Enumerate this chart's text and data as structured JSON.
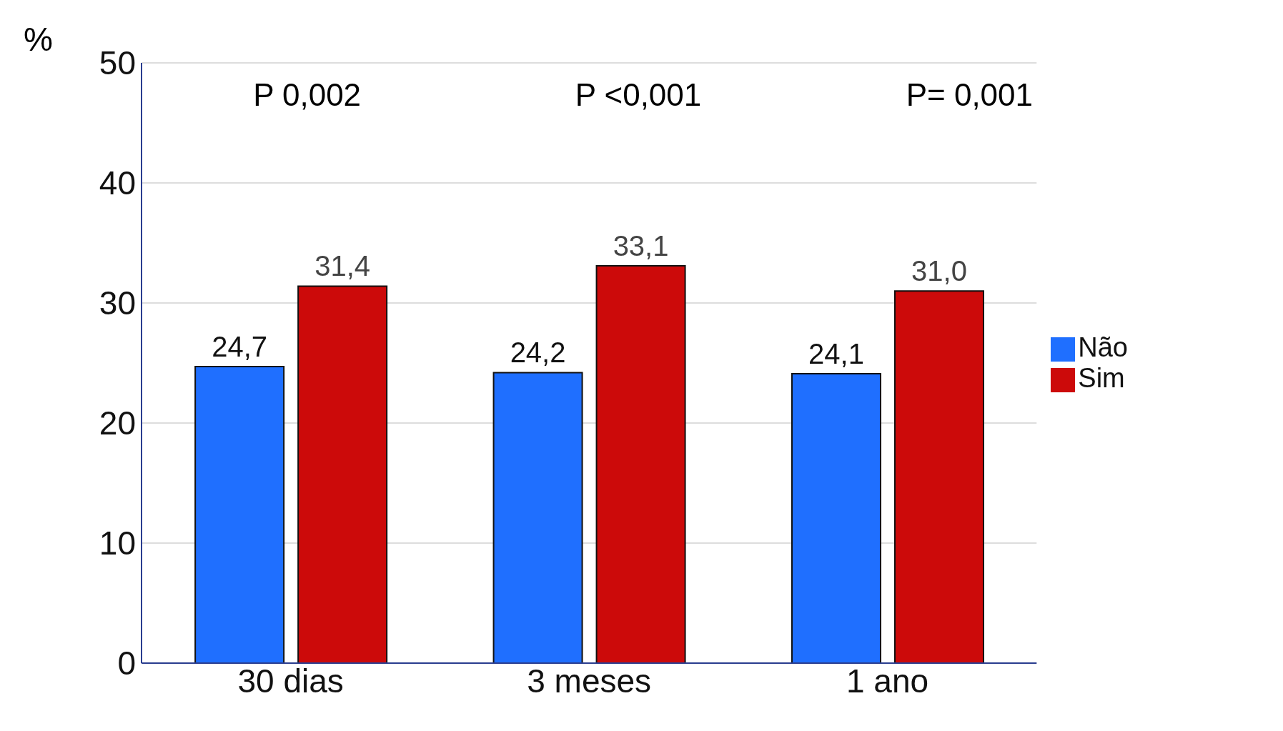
{
  "chart_data": {
    "type": "bar",
    "ylabel": "%",
    "categories": [
      "30 dias",
      "3 meses",
      "1 ano"
    ],
    "series": [
      {
        "name": "Não",
        "color": "#1f6fff",
        "values": [
          24.7,
          24.2,
          24.1
        ],
        "value_labels": [
          "24,7",
          "24,2",
          "24,1"
        ]
      },
      {
        "name": "Sim",
        "color": "#cc0a0a",
        "values": [
          31.4,
          33.1,
          31.0
        ],
        "value_labels": [
          "31,4",
          "33,1",
          "31,0"
        ]
      }
    ],
    "ylim": [
      0,
      50
    ],
    "yticks": [
      0,
      10,
      20,
      30,
      40,
      50
    ],
    "grid": "y",
    "legend": "right",
    "annotations": [
      "P 0,002",
      "P <0,001",
      "P= 0,001"
    ]
  }
}
